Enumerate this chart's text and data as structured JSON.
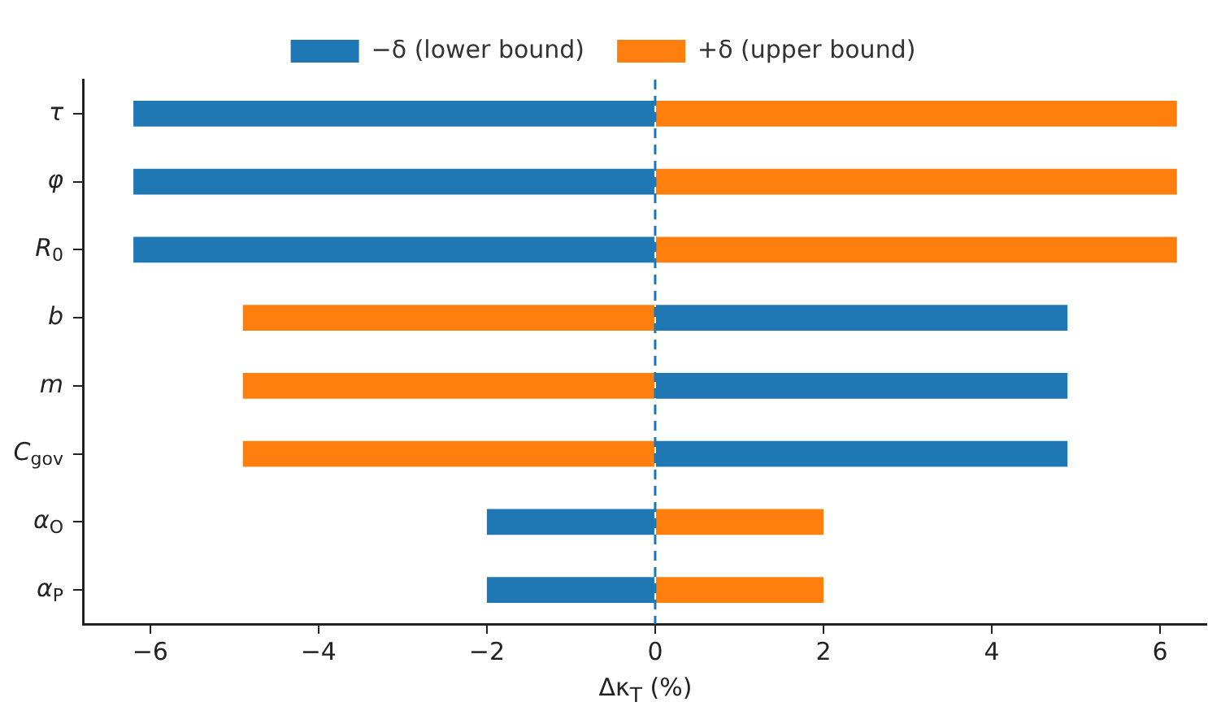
{
  "chart_data": {
    "type": "bar",
    "orientation": "horizontal",
    "stacked": true,
    "xlabel": "Δκ$_{T}$ (%)",
    "categories": [
      "τ",
      "φ",
      "R$_{0}$",
      "b",
      "m",
      "C$_{gov}$",
      "α$_{O}$",
      "α$_{P}$"
    ],
    "series": [
      {
        "name": "−δ (lower bound)",
        "color": "#1f77b4",
        "values": [
          -6.2,
          -6.2,
          -6.2,
          4.9,
          4.9,
          4.9,
          -2,
          -2
        ]
      },
      {
        "name": "+δ (upper bound)",
        "color": "#ff7f0e",
        "values": [
          6.2,
          6.2,
          6.2,
          -4.9,
          -4.9,
          -4.9,
          2,
          2
        ]
      }
    ],
    "xlim": [
      -6.8,
      6.55
    ],
    "xticks": [
      {
        "value": -6,
        "label": "−6"
      },
      {
        "value": -4,
        "label": "−4"
      },
      {
        "value": -2,
        "label": "−2"
      },
      0,
      2,
      4,
      6
    ],
    "ref_lines": [
      {
        "axis": "x",
        "value": 0,
        "color": "#1f77b4",
        "line_style": "dashed"
      }
    ],
    "grid": false,
    "legend": "top"
  }
}
